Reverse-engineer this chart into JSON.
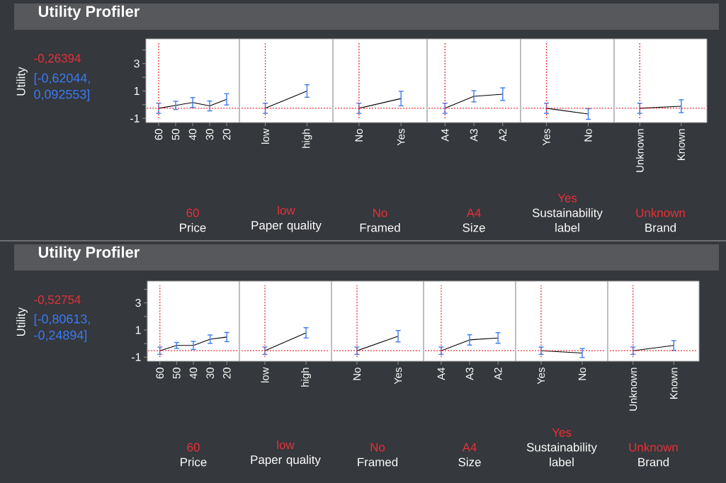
{
  "chart_data": [
    {
      "type": "line",
      "title": "Utility Profiler",
      "ylabel": "Utility",
      "xlabel": "Price",
      "categories": [
        "60",
        "50",
        "40",
        "30",
        "20"
      ],
      "series": [
        {
          "color": "#000000",
          "values": [
            -0.26,
            -0.05,
            0.16,
            -0.09,
            0.39
          ],
          "errors": [
            0.37,
            0.3,
            0.36,
            0.36,
            0.41
          ]
        }
      ],
      "ylim": [
        -1.3,
        4.8
      ],
      "yticks": [
        -1,
        {
          "value": 0,
          "label": null
        },
        1,
        {
          "value": 2,
          "label": null
        },
        3,
        {
          "value": 4,
          "label": null
        }
      ],
      "ref_lines": [
        {
          "axis": "x",
          "value": "60",
          "label": "60",
          "color": "#e8303a",
          "line_style": "dotted"
        },
        {
          "axis": "y",
          "value": -0.26394,
          "label": "-0,26394",
          "color": "#e8303a",
          "line_style": "dotted"
        }
      ],
      "annotations": [
        "[-0,62044, 0,092553]"
      ]
    },
    {
      "type": "line",
      "xlabel": "Paper quality",
      "categories": [
        "low",
        "high"
      ],
      "series": [
        {
          "color": "#000000",
          "values": [
            -0.26,
            1.0
          ],
          "errors": [
            0.37,
            0.46
          ]
        }
      ],
      "ylim": [
        -1.3,
        4.8
      ],
      "tick_labels": "x",
      "ref_lines": [
        {
          "axis": "x",
          "value": "low",
          "label": "low",
          "color": "#e8303a",
          "line_style": "dotted"
        },
        {
          "axis": "y",
          "value": -0.26394,
          "color": "#e8303a",
          "line_style": "dotted"
        }
      ]
    },
    {
      "type": "line",
      "xlabel": "Framed",
      "categories": [
        "No",
        "Yes"
      ],
      "series": [
        {
          "color": "#000000",
          "values": [
            -0.26,
            0.45
          ],
          "errors": [
            0.37,
            0.53
          ]
        }
      ],
      "ylim": [
        -1.3,
        4.8
      ],
      "tick_labels": "x",
      "ref_lines": [
        {
          "axis": "x",
          "value": "No",
          "label": "No",
          "color": "#e8303a",
          "line_style": "dotted"
        },
        {
          "axis": "y",
          "value": -0.26394,
          "color": "#e8303a",
          "line_style": "dotted"
        }
      ]
    },
    {
      "type": "line",
      "xlabel": "Size",
      "categories": [
        "A4",
        "A3",
        "A2"
      ],
      "series": [
        {
          "color": "#000000",
          "values": [
            -0.26,
            0.61,
            0.77
          ],
          "errors": [
            0.37,
            0.41,
            0.46
          ]
        }
      ],
      "ylim": [
        -1.3,
        4.8
      ],
      "tick_labels": "x",
      "ref_lines": [
        {
          "axis": "x",
          "value": "A4",
          "label": "A4",
          "color": "#e8303a",
          "line_style": "dotted"
        },
        {
          "axis": "y",
          "value": -0.26394,
          "color": "#e8303a",
          "line_style": "dotted"
        }
      ]
    },
    {
      "type": "line",
      "xlabel": "Sustainability label",
      "categories": [
        "Yes",
        "No"
      ],
      "series": [
        {
          "color": "#000000",
          "values": [
            -0.26,
            -0.68
          ],
          "errors": [
            0.37,
            0.39
          ]
        }
      ],
      "ylim": [
        -1.3,
        4.8
      ],
      "tick_labels": "x",
      "ref_lines": [
        {
          "axis": "x",
          "value": "Yes",
          "label": "Yes",
          "color": "#e8303a",
          "line_style": "dotted"
        },
        {
          "axis": "y",
          "value": -0.26394,
          "color": "#e8303a",
          "line_style": "dotted"
        }
      ]
    },
    {
      "type": "line",
      "xlabel": "Brand",
      "categories": [
        "Unknown",
        "Known"
      ],
      "series": [
        {
          "color": "#000000",
          "values": [
            -0.26,
            -0.11
          ],
          "errors": [
            0.37,
            0.47
          ]
        }
      ],
      "ylim": [
        -1.3,
        4.8
      ],
      "tick_labels": "x",
      "ref_lines": [
        {
          "axis": "x",
          "value": "Unknown",
          "label": "Unknown",
          "color": "#e8303a",
          "line_style": "dotted"
        },
        {
          "axis": "y",
          "value": -0.26394,
          "color": "#e8303a",
          "line_style": "dotted"
        }
      ]
    },
    {
      "type": "line",
      "title": "Utility Profiler",
      "ylabel": "Utility",
      "xlabel": "Price",
      "categories": [
        "60",
        "50",
        "40",
        "30",
        "20"
      ],
      "series": [
        {
          "color": "#000000",
          "values": [
            -0.53,
            -0.14,
            -0.14,
            0.32,
            0.48
          ],
          "errors": [
            0.27,
            0.22,
            0.3,
            0.31,
            0.34
          ]
        }
      ],
      "ylim": [
        -1.3,
        4.6
      ],
      "yticks": [
        -1,
        {
          "value": 0,
          "label": null
        },
        1,
        {
          "value": 2,
          "label": null
        },
        3,
        {
          "value": 4,
          "label": null
        }
      ],
      "ref_lines": [
        {
          "axis": "x",
          "value": "60",
          "label": "60",
          "color": "#e8303a",
          "line_style": "dotted"
        },
        {
          "axis": "y",
          "value": -0.52754,
          "label": "-0,52754",
          "color": "#e8303a",
          "line_style": "dotted"
        }
      ],
      "annotations": [
        "[-0,80613, -0,24894]"
      ]
    },
    {
      "type": "line",
      "xlabel": "Paper quality",
      "categories": [
        "low",
        "high"
      ],
      "series": [
        {
          "color": "#000000",
          "values": [
            -0.53,
            0.79
          ],
          "errors": [
            0.27,
            0.38
          ]
        }
      ],
      "ylim": [
        -1.3,
        4.6
      ],
      "tick_labels": "x",
      "ref_lines": [
        {
          "axis": "x",
          "value": "low",
          "label": "low",
          "color": "#e8303a",
          "line_style": "dotted"
        },
        {
          "axis": "y",
          "value": -0.52754,
          "color": "#e8303a",
          "line_style": "dotted"
        }
      ]
    },
    {
      "type": "line",
      "xlabel": "Framed",
      "categories": [
        "No",
        "Yes"
      ],
      "series": [
        {
          "color": "#000000",
          "values": [
            -0.53,
            0.54
          ],
          "errors": [
            0.27,
            0.42
          ]
        }
      ],
      "ylim": [
        -1.3,
        4.6
      ],
      "tick_labels": "x",
      "ref_lines": [
        {
          "axis": "x",
          "value": "No",
          "label": "No",
          "color": "#e8303a",
          "line_style": "dotted"
        },
        {
          "axis": "y",
          "value": -0.52754,
          "color": "#e8303a",
          "line_style": "dotted"
        }
      ]
    },
    {
      "type": "line",
      "xlabel": "Size",
      "categories": [
        "A4",
        "A3",
        "A2"
      ],
      "series": [
        {
          "color": "#000000",
          "values": [
            -0.53,
            0.27,
            0.41
          ],
          "errors": [
            0.27,
            0.38,
            0.39
          ]
        }
      ],
      "ylim": [
        -1.3,
        4.6
      ],
      "tick_labels": "x",
      "ref_lines": [
        {
          "axis": "x",
          "value": "A4",
          "label": "A4",
          "color": "#e8303a",
          "line_style": "dotted"
        },
        {
          "axis": "y",
          "value": -0.52754,
          "color": "#e8303a",
          "line_style": "dotted"
        }
      ]
    },
    {
      "type": "line",
      "xlabel": "Sustainability label",
      "categories": [
        "Yes",
        "No"
      ],
      "series": [
        {
          "color": "#000000",
          "values": [
            -0.53,
            -0.7
          ],
          "errors": [
            0.27,
            0.33
          ]
        }
      ],
      "ylim": [
        -1.3,
        4.6
      ],
      "tick_labels": "x",
      "ref_lines": [
        {
          "axis": "x",
          "value": "Yes",
          "label": "Yes",
          "color": "#e8303a",
          "line_style": "dotted"
        },
        {
          "axis": "y",
          "value": -0.52754,
          "color": "#e8303a",
          "line_style": "dotted"
        }
      ]
    },
    {
      "type": "line",
      "xlabel": "Brand",
      "categories": [
        "Unknown",
        "Known"
      ],
      "series": [
        {
          "color": "#000000",
          "values": [
            -0.53,
            -0.14
          ],
          "errors": [
            0.27,
            0.36
          ]
        }
      ],
      "ylim": [
        -1.3,
        4.6
      ],
      "tick_labels": "x",
      "ref_lines": [
        {
          "axis": "x",
          "value": "Unknown",
          "label": "Unknown",
          "color": "#e8303a",
          "line_style": "dotted"
        },
        {
          "axis": "y",
          "value": -0.52754,
          "color": "#e8303a",
          "line_style": "dotted"
        }
      ]
    }
  ]
}
